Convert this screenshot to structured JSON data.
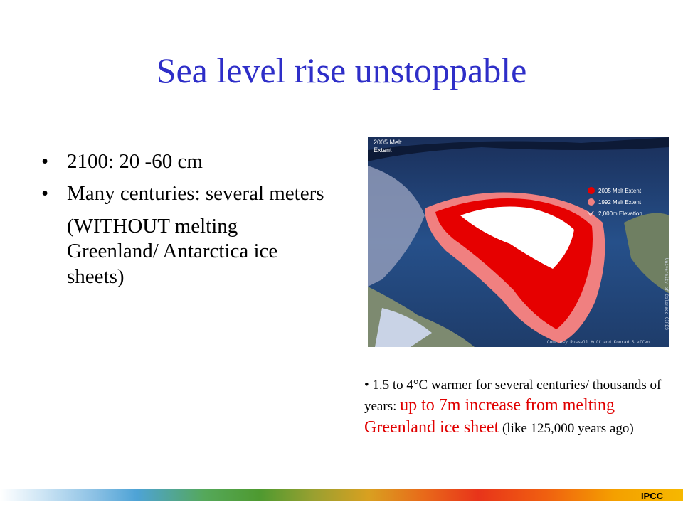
{
  "title": "Sea level rise unstoppable",
  "bullets": [
    {
      "marker": "•",
      "text": "2100: 20 -60 cm"
    },
    {
      "marker": "•",
      "text": "Many centuries: several meters"
    }
  ],
  "note": "(WITHOUT melting Greenland/ Antarctica ice sheets)",
  "map": {
    "title_line1": "2005 Melt",
    "title_line2": "Extent",
    "legend": [
      {
        "label": "2005 Melt Extent",
        "color": "#e60000"
      },
      {
        "label": "1992 Melt Extent",
        "color": "#f08080"
      },
      {
        "label": "2,000m Elevation",
        "color": "#f4c8c8"
      }
    ],
    "credit_side": "University of Colorado CIRES",
    "credit_bottom": "Courtesy Russell Huff and Konrad Steffen"
  },
  "caption": {
    "bullet": "•",
    "part1": "1.5 to 4°C warmer for several centuries/ thousands of years:",
    "part2": "up to 7m increase from melting Greenland ice sheet",
    "part3": "(like 125,000 years ago)"
  },
  "footer": {
    "org": "IPCC"
  }
}
